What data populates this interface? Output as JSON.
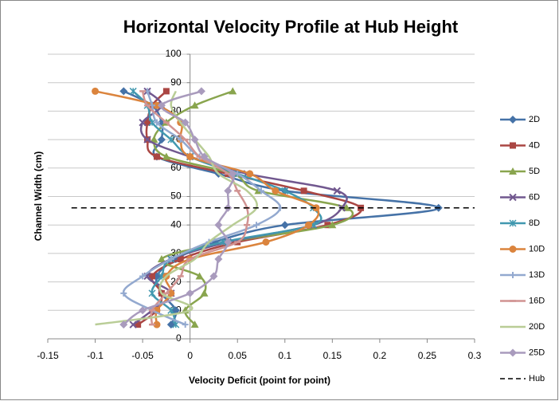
{
  "chart_data": {
    "type": "scatter",
    "title": "Horizontal Velocity Profile at Hub Height",
    "x_label": "Velocity Deficit (point for point)",
    "y_label": "Channel Width (cm)",
    "xlim": [
      -0.15,
      0.3
    ],
    "xticks": [
      -0.15,
      -0.1,
      -0.05,
      0,
      0.05,
      0.1,
      0.15,
      0.2,
      0.25,
      0.3
    ],
    "ylim": [
      0,
      100
    ],
    "yticks": [
      0,
      10,
      20,
      30,
      40,
      50,
      60,
      70,
      80,
      90,
      100
    ],
    "grid": true,
    "legend": "right",
    "y": [
      5,
      10,
      16,
      22,
      28,
      34,
      40,
      46,
      52,
      58,
      64,
      70,
      76,
      82,
      87
    ],
    "series": [
      {
        "name": "2D",
        "color": "#4572A7",
        "marker": "diamond",
        "values": [
          -0.02,
          -0.015,
          -0.03,
          -0.035,
          -0.015,
          0.026,
          0.1,
          0.262,
          0.1,
          0.03,
          -0.035,
          -0.03,
          -0.03,
          -0.04,
          -0.07
        ]
      },
      {
        "name": "4D",
        "color": "#AA4643",
        "marker": "square",
        "values": [
          -0.055,
          -0.035,
          -0.03,
          -0.04,
          -0.01,
          0.05,
          0.145,
          0.18,
          0.12,
          0.04,
          -0.035,
          -0.045,
          -0.045,
          -0.04,
          -0.025
        ]
      },
      {
        "name": "5D",
        "color": "#89A54E",
        "marker": "triangle",
        "values": [
          0.005,
          -0.005,
          0.015,
          0.01,
          -0.03,
          0.04,
          0.15,
          0.165,
          0.072,
          0.045,
          -0.025,
          -0.038,
          -0.025,
          0.005,
          0.045
        ]
      },
      {
        "name": "6D",
        "color": "#71588F",
        "marker": "x",
        "values": [
          -0.06,
          -0.04,
          -0.02,
          -0.045,
          -0.02,
          0.04,
          0.13,
          0.16,
          0.155,
          0.06,
          0.0,
          -0.045,
          -0.05,
          -0.03,
          -0.045
        ]
      },
      {
        "name": "8D",
        "color": "#4198AF",
        "marker": "star",
        "values": [
          -0.015,
          -0.02,
          -0.04,
          -0.03,
          -0.02,
          0.035,
          0.13,
          0.13,
          0.1,
          0.05,
          0.0,
          -0.02,
          -0.04,
          -0.045,
          -0.06
        ]
      },
      {
        "name": "10D",
        "color": "#DB843D",
        "marker": "circle",
        "values": [
          -0.035,
          -0.035,
          -0.02,
          -0.025,
          0.0,
          0.08,
          0.125,
          0.133,
          0.09,
          0.063,
          0.0,
          -0.01,
          -0.01,
          -0.035,
          -0.1
        ]
      },
      {
        "name": "13D",
        "color": "#93A9CF",
        "marker": "plus",
        "values": [
          -0.005,
          -0.04,
          -0.07,
          -0.05,
          -0.02,
          0.02,
          0.07,
          0.095,
          0.075,
          0.05,
          0.01,
          -0.01,
          -0.035,
          -0.04,
          -0.045
        ]
      },
      {
        "name": "16D",
        "color": "#D19392",
        "marker": "dash",
        "values": [
          -0.04,
          -0.04,
          -0.025,
          -0.01,
          0.0,
          0.05,
          0.06,
          0.06,
          0.05,
          0.04,
          0.01,
          -0.005,
          -0.025,
          -0.045,
          -0.05
        ]
      },
      {
        "name": "20D",
        "color": "#B9CD96",
        "marker": "none",
        "values": [
          -0.1,
          0.0,
          -0.03,
          -0.025,
          0.005,
          0.02,
          0.045,
          0.07,
          0.06,
          0.03,
          0.02,
          0.005,
          -0.01,
          -0.02,
          -0.015
        ]
      },
      {
        "name": "25D",
        "color": "#A99BBD",
        "marker": "diamond",
        "values": [
          -0.07,
          -0.05,
          0.0,
          0.025,
          0.03,
          0.04,
          0.03,
          0.04,
          0.04,
          0.045,
          0.015,
          0.005,
          -0.005,
          -0.03,
          0.012
        ]
      },
      {
        "name": "Hub",
        "color": "#000000",
        "marker": "none",
        "dash": true,
        "values": [
          -0.125,
          0.3
        ],
        "y": [
          46,
          46
        ]
      }
    ]
  }
}
